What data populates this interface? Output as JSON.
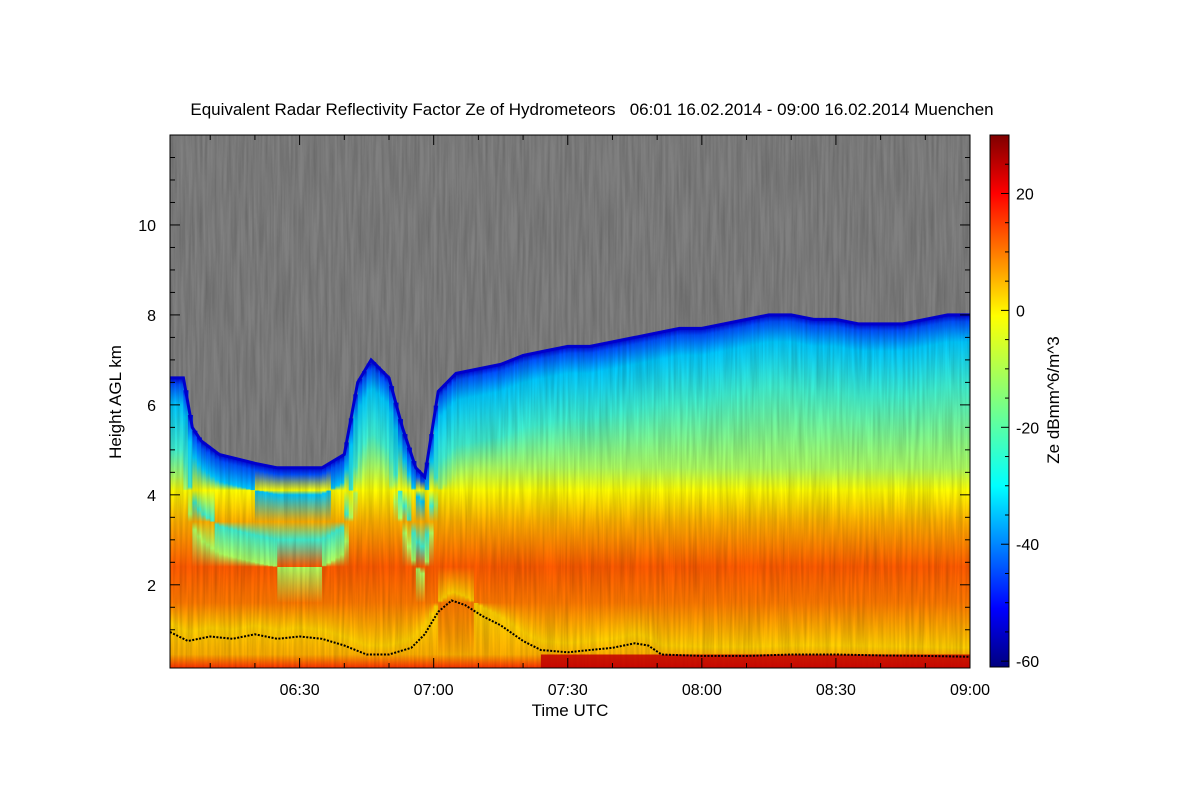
{
  "chart_data": {
    "type": "heatmap",
    "title": "Equivalent Radar Reflectivity Factor Ze of Hydrometeors   06:01 16.02.2014 - 09:00 16.02.2014 Muenchen",
    "xlabel": "Time UTC",
    "ylabel": "Height AGL km",
    "colorbar_label": "Ze dBmm^6/m^3",
    "x_start_min": 361,
    "x_end_min": 540,
    "xlim_labels": [
      "06:01",
      "09:00"
    ],
    "x_ticks": [
      {
        "label": "06:30",
        "min": 390
      },
      {
        "label": "07:00",
        "min": 420
      },
      {
        "label": "07:30",
        "min": 450
      },
      {
        "label": "08:00",
        "min": 480
      },
      {
        "label": "08:30",
        "min": 510
      },
      {
        "label": "09:00",
        "min": 540
      }
    ],
    "ylim": [
      0.15,
      12.0
    ],
    "y_ticks": [
      {
        "label": "2",
        "value": 2
      },
      {
        "label": "4",
        "value": 4
      },
      {
        "label": "6",
        "value": 6
      },
      {
        "label": "8",
        "value": 8
      },
      {
        "label": "10",
        "value": 10
      }
    ],
    "colorbar_range": [
      -61,
      30
    ],
    "colorbar_ticks": [
      {
        "label": "20",
        "value": 20
      },
      {
        "label": "0",
        "value": 0
      },
      {
        "label": "-20",
        "value": -20
      },
      {
        "label": "-40",
        "value": -40
      },
      {
        "label": "-60",
        "value": -60
      }
    ],
    "no_data_color": "#808080",
    "colormap": [
      "#00007f",
      "#0000ff",
      "#007fff",
      "#00ffff",
      "#7fff7f",
      "#ffff00",
      "#ff7f00",
      "#ff0000",
      "#7f0000"
    ],
    "cloud_top_km": [
      {
        "t": 361,
        "h": 6.6
      },
      {
        "t": 364,
        "h": 6.6
      },
      {
        "t": 366,
        "h": 5.5
      },
      {
        "t": 368,
        "h": 5.2
      },
      {
        "t": 372,
        "h": 4.9
      },
      {
        "t": 376,
        "h": 4.8
      },
      {
        "t": 380,
        "h": 4.7
      },
      {
        "t": 385,
        "h": 4.6
      },
      {
        "t": 390,
        "h": 4.6
      },
      {
        "t": 395,
        "h": 4.6
      },
      {
        "t": 400,
        "h": 4.9
      },
      {
        "t": 403,
        "h": 6.5
      },
      {
        "t": 406,
        "h": 7.0
      },
      {
        "t": 410,
        "h": 6.6
      },
      {
        "t": 413,
        "h": 5.5
      },
      {
        "t": 416,
        "h": 4.6
      },
      {
        "t": 418,
        "h": 4.4
      },
      {
        "t": 421,
        "h": 6.3
      },
      {
        "t": 425,
        "h": 6.7
      },
      {
        "t": 430,
        "h": 6.8
      },
      {
        "t": 435,
        "h": 6.9
      },
      {
        "t": 440,
        "h": 7.1
      },
      {
        "t": 445,
        "h": 7.2
      },
      {
        "t": 450,
        "h": 7.3
      },
      {
        "t": 455,
        "h": 7.3
      },
      {
        "t": 460,
        "h": 7.4
      },
      {
        "t": 465,
        "h": 7.5
      },
      {
        "t": 470,
        "h": 7.6
      },
      {
        "t": 475,
        "h": 7.7
      },
      {
        "t": 480,
        "h": 7.7
      },
      {
        "t": 485,
        "h": 7.8
      },
      {
        "t": 490,
        "h": 7.9
      },
      {
        "t": 495,
        "h": 8.0
      },
      {
        "t": 500,
        "h": 8.0
      },
      {
        "t": 505,
        "h": 7.9
      },
      {
        "t": 510,
        "h": 7.9
      },
      {
        "t": 515,
        "h": 7.8
      },
      {
        "t": 520,
        "h": 7.8
      },
      {
        "t": 525,
        "h": 7.8
      },
      {
        "t": 530,
        "h": 7.9
      },
      {
        "t": 535,
        "h": 8.0
      },
      {
        "t": 540,
        "h": 8.0
      }
    ],
    "cloud_base_km": [
      {
        "t": 361,
        "h": 0.95
      },
      {
        "t": 365,
        "h": 0.75
      },
      {
        "t": 370,
        "h": 0.85
      },
      {
        "t": 375,
        "h": 0.8
      },
      {
        "t": 380,
        "h": 0.9
      },
      {
        "t": 385,
        "h": 0.8
      },
      {
        "t": 390,
        "h": 0.85
      },
      {
        "t": 395,
        "h": 0.8
      },
      {
        "t": 400,
        "h": 0.65
      },
      {
        "t": 405,
        "h": 0.45
      },
      {
        "t": 410,
        "h": 0.45
      },
      {
        "t": 415,
        "h": 0.6
      },
      {
        "t": 418,
        "h": 0.9
      },
      {
        "t": 421,
        "h": 1.4
      },
      {
        "t": 424,
        "h": 1.65
      },
      {
        "t": 427,
        "h": 1.55
      },
      {
        "t": 431,
        "h": 1.3
      },
      {
        "t": 435,
        "h": 1.1
      },
      {
        "t": 440,
        "h": 0.75
      },
      {
        "t": 444,
        "h": 0.55
      },
      {
        "t": 450,
        "h": 0.5
      },
      {
        "t": 455,
        "h": 0.55
      },
      {
        "t": 460,
        "h": 0.6
      },
      {
        "t": 465,
        "h": 0.7
      },
      {
        "t": 468,
        "h": 0.65
      },
      {
        "t": 471,
        "h": 0.45
      },
      {
        "t": 480,
        "h": 0.42
      },
      {
        "t": 490,
        "h": 0.42
      },
      {
        "t": 500,
        "h": 0.45
      },
      {
        "t": 510,
        "h": 0.45
      },
      {
        "t": 520,
        "h": 0.43
      },
      {
        "t": 530,
        "h": 0.42
      },
      {
        "t": 540,
        "h": 0.4
      }
    ]
  }
}
